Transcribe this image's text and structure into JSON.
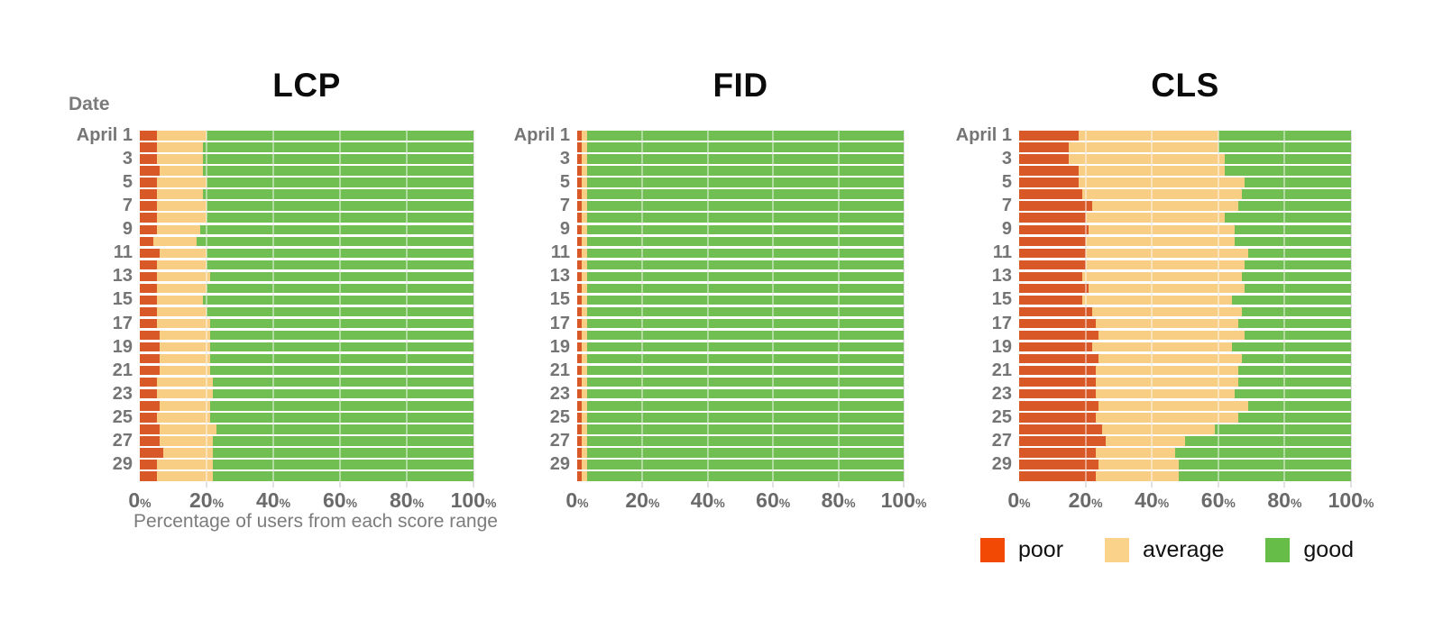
{
  "page": {
    "background": "#ffffff"
  },
  "colors": {
    "bar_poor": "#d95827",
    "bar_average": "#f8ce85",
    "bar_good": "#71bf53",
    "legend_poor": "#f24a05",
    "legend_average": "#fbd289",
    "legend_good": "#66bd47",
    "grid": "#e2e2e2",
    "axis_text": "#6a6a6a",
    "label_text": "#757575"
  },
  "date_axis_label": "Date",
  "x_ticks": [
    "0%",
    "20%",
    "40%",
    "60%",
    "80%",
    "100%"
  ],
  "legend": {
    "items": [
      {
        "label": "poor",
        "color": "#f24a05"
      },
      {
        "label": "average",
        "color": "#fbd289"
      },
      {
        "label": "good",
        "color": "#66bd47"
      }
    ],
    "position": "bottom-right"
  },
  "chart_data": [
    {
      "type": "bar",
      "orientation": "horizontal",
      "stacked": true,
      "title": "LCP",
      "xlabel": "Percentage of users from each score range",
      "ylabel": "Date",
      "xlim": [
        0,
        100
      ],
      "grid": true,
      "categories": [
        "April 1",
        "April 2",
        "April 3",
        "April 4",
        "April 5",
        "April 6",
        "April 7",
        "April 8",
        "April 9",
        "April 10",
        "April 11",
        "April 12",
        "April 13",
        "April 14",
        "April 15",
        "April 16",
        "April 17",
        "April 18",
        "April 19",
        "April 20",
        "April 21",
        "April 22",
        "April 23",
        "April 24",
        "April 25",
        "April 26",
        "April 27",
        "April 28",
        "April 29",
        "April 30"
      ],
      "row_labels": [
        "April 1",
        "3",
        "5",
        "7",
        "9",
        "11",
        "13",
        "15",
        "17",
        "19",
        "21",
        "23",
        "25",
        "27",
        "29"
      ],
      "series": [
        {
          "name": "poor",
          "values": [
            5,
            5,
            5,
            6,
            5,
            5,
            5,
            5,
            5,
            4,
            6,
            5,
            5,
            5,
            5,
            5,
            5,
            6,
            6,
            6,
            6,
            5,
            5,
            6,
            5,
            6,
            6,
            7,
            5,
            5
          ]
        },
        {
          "name": "average",
          "values": [
            15,
            14,
            14,
            13,
            15,
            14,
            15,
            15,
            13,
            13,
            14,
            15,
            16,
            15,
            14,
            15,
            16,
            15,
            15,
            15,
            15,
            17,
            17,
            15,
            16,
            17,
            16,
            15,
            17,
            17
          ]
        },
        {
          "name": "good",
          "values": [
            80,
            81,
            81,
            81,
            80,
            81,
            80,
            80,
            82,
            83,
            80,
            80,
            79,
            80,
            81,
            80,
            79,
            79,
            79,
            79,
            79,
            78,
            78,
            79,
            79,
            77,
            78,
            78,
            78,
            78
          ]
        }
      ]
    },
    {
      "type": "bar",
      "orientation": "horizontal",
      "stacked": true,
      "title": "FID",
      "xlabel": "",
      "ylabel": "Date",
      "xlim": [
        0,
        100
      ],
      "grid": true,
      "categories": [
        "April 1",
        "April 2",
        "April 3",
        "April 4",
        "April 5",
        "April 6",
        "April 7",
        "April 8",
        "April 9",
        "April 10",
        "April 11",
        "April 12",
        "April 13",
        "April 14",
        "April 15",
        "April 16",
        "April 17",
        "April 18",
        "April 19",
        "April 20",
        "April 21",
        "April 22",
        "April 23",
        "April 24",
        "April 25",
        "April 26",
        "April 27",
        "April 28",
        "April 29",
        "April 30"
      ],
      "row_labels": [
        "April 1",
        "3",
        "5",
        "7",
        "9",
        "11",
        "13",
        "15",
        "17",
        "19",
        "21",
        "23",
        "25",
        "27",
        "29"
      ],
      "series": [
        {
          "name": "poor",
          "values": [
            1.5,
            1.5,
            1.5,
            1.5,
            1.5,
            1.5,
            1.5,
            1.5,
            1.5,
            1.5,
            1.5,
            1.5,
            1.5,
            1.5,
            1.5,
            1.5,
            1.5,
            1.5,
            1.5,
            1.5,
            1.5,
            1.5,
            1.5,
            1.5,
            1.5,
            1.5,
            1.5,
            1.5,
            1.5,
            1.5
          ]
        },
        {
          "name": "average",
          "values": [
            1.5,
            1.5,
            1.5,
            1.5,
            1.5,
            1.5,
            1.5,
            1.5,
            1.5,
            1.5,
            1.5,
            1.5,
            1.5,
            1.5,
            1.5,
            1.5,
            1.5,
            1.5,
            1.5,
            1.5,
            1.5,
            1.5,
            1.5,
            1.5,
            1.5,
            1.5,
            1.5,
            1.5,
            1.5,
            1.5
          ]
        },
        {
          "name": "good",
          "values": [
            97,
            97,
            97,
            97,
            97,
            97,
            97,
            97,
            97,
            97,
            97,
            97,
            97,
            97,
            97,
            97,
            97,
            97,
            97,
            97,
            97,
            97,
            97,
            97,
            97,
            97,
            97,
            97,
            97,
            97
          ]
        }
      ]
    },
    {
      "type": "bar",
      "orientation": "horizontal",
      "stacked": true,
      "title": "CLS",
      "xlabel": "",
      "ylabel": "Date",
      "xlim": [
        0,
        100
      ],
      "grid": true,
      "categories": [
        "April 1",
        "April 2",
        "April 3",
        "April 4",
        "April 5",
        "April 6",
        "April 7",
        "April 8",
        "April 9",
        "April 10",
        "April 11",
        "April 12",
        "April 13",
        "April 14",
        "April 15",
        "April 16",
        "April 17",
        "April 18",
        "April 19",
        "April 20",
        "April 21",
        "April 22",
        "April 23",
        "April 24",
        "April 25",
        "April 26",
        "April 27",
        "April 28",
        "April 29",
        "April 30"
      ],
      "row_labels": [
        "April 1",
        "3",
        "5",
        "7",
        "9",
        "11",
        "13",
        "15",
        "17",
        "19",
        "21",
        "23",
        "25",
        "27",
        "29"
      ],
      "series": [
        {
          "name": "poor",
          "values": [
            18,
            15,
            15,
            18,
            18,
            19,
            22,
            20,
            21,
            20,
            20,
            20,
            19,
            21,
            19,
            22,
            23,
            24,
            22,
            24,
            23,
            23,
            23,
            24,
            23,
            25,
            26,
            23,
            24,
            23
          ]
        },
        {
          "name": "average",
          "values": [
            42,
            45,
            47,
            44,
            50,
            48,
            44,
            42,
            44,
            45,
            49,
            48,
            48,
            47,
            45,
            45,
            43,
            44,
            42,
            43,
            43,
            43,
            42,
            45,
            43,
            34,
            24,
            24,
            24,
            25
          ]
        },
        {
          "name": "good",
          "values": [
            40,
            40,
            38,
            38,
            32,
            33,
            34,
            38,
            35,
            35,
            31,
            32,
            33,
            32,
            36,
            33,
            34,
            32,
            36,
            33,
            34,
            34,
            35,
            31,
            34,
            41,
            50,
            53,
            52,
            52
          ]
        }
      ]
    }
  ]
}
